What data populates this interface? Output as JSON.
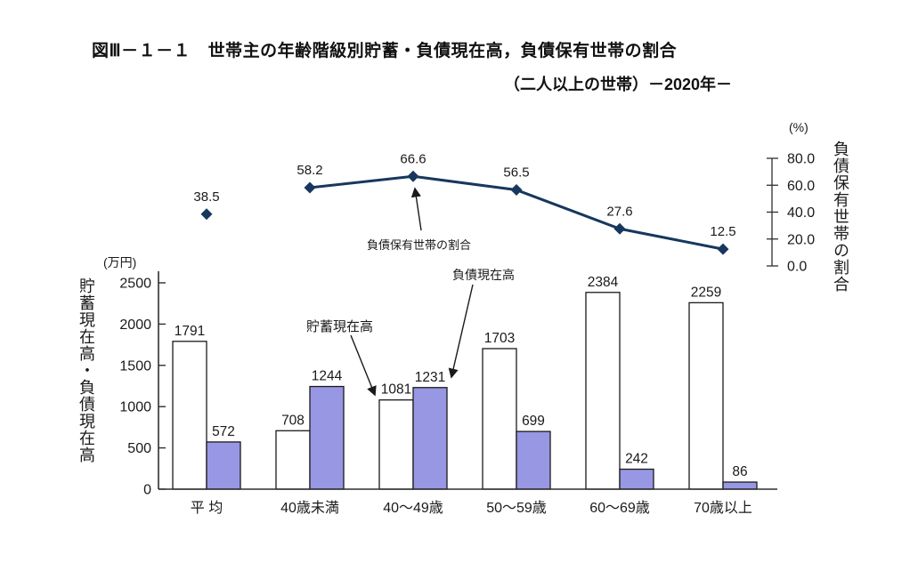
{
  "figure": {
    "title": "図Ⅲ－１－１　世帯主の年齢階級別貯蓄・負債現在高，負債保有世帯の割合",
    "subtitle": "（二人以上の世帯）－2020年－"
  },
  "chart_data": {
    "type": "bar",
    "subtype": "grouped bars with overlaid line, dual axis",
    "categories": [
      "平 均",
      "40歳未満",
      "40～49歳",
      "50～59歳",
      "60～69歳",
      "70歳以上"
    ],
    "series": [
      {
        "name": "貯蓄現在高",
        "type": "bar",
        "axis": "left",
        "values": [
          1791,
          708,
          1081,
          1703,
          2384,
          2259
        ],
        "fill": "#ffffff"
      },
      {
        "name": "負債現在高",
        "type": "bar",
        "axis": "left",
        "values": [
          572,
          1244,
          1231,
          699,
          242,
          86
        ],
        "fill": "#9897E4"
      },
      {
        "name": "負債保有世帯の割合",
        "type": "line",
        "axis": "right",
        "values": [
          38.5,
          58.2,
          66.6,
          56.5,
          27.6,
          12.5
        ],
        "first_point_isolated": true
      }
    ],
    "left_axis": {
      "unit": "(万円)",
      "title": "貯蓄現在高・負債現在高",
      "ticks": [
        0,
        500,
        1000,
        1500,
        2000,
        2500
      ],
      "max": 2500
    },
    "right_axis": {
      "unit": "(%)",
      "title": "負債保有世帯の割合",
      "tick_labels": [
        "0.0",
        "20.0",
        "40.0",
        "60.0",
        "80.0"
      ],
      "max": 80
    },
    "annotations": [
      {
        "text": "負債保有世帯の割合",
        "points_to": "line marker at 40～49歳"
      },
      {
        "text": "負債現在高",
        "points_to": "debt bar at 40～49歳"
      },
      {
        "text": "貯蓄現在高",
        "points_to": "savings bar at 40～49歳"
      }
    ],
    "colors": {
      "line": "#17375E",
      "debt_fill": "#9897E4",
      "savings_fill": "#ffffff",
      "bar_stroke": "#1a1a1a",
      "axis": "#2f2f2f",
      "text": "#1a1a1a"
    },
    "legend": "none",
    "grid": false
  }
}
